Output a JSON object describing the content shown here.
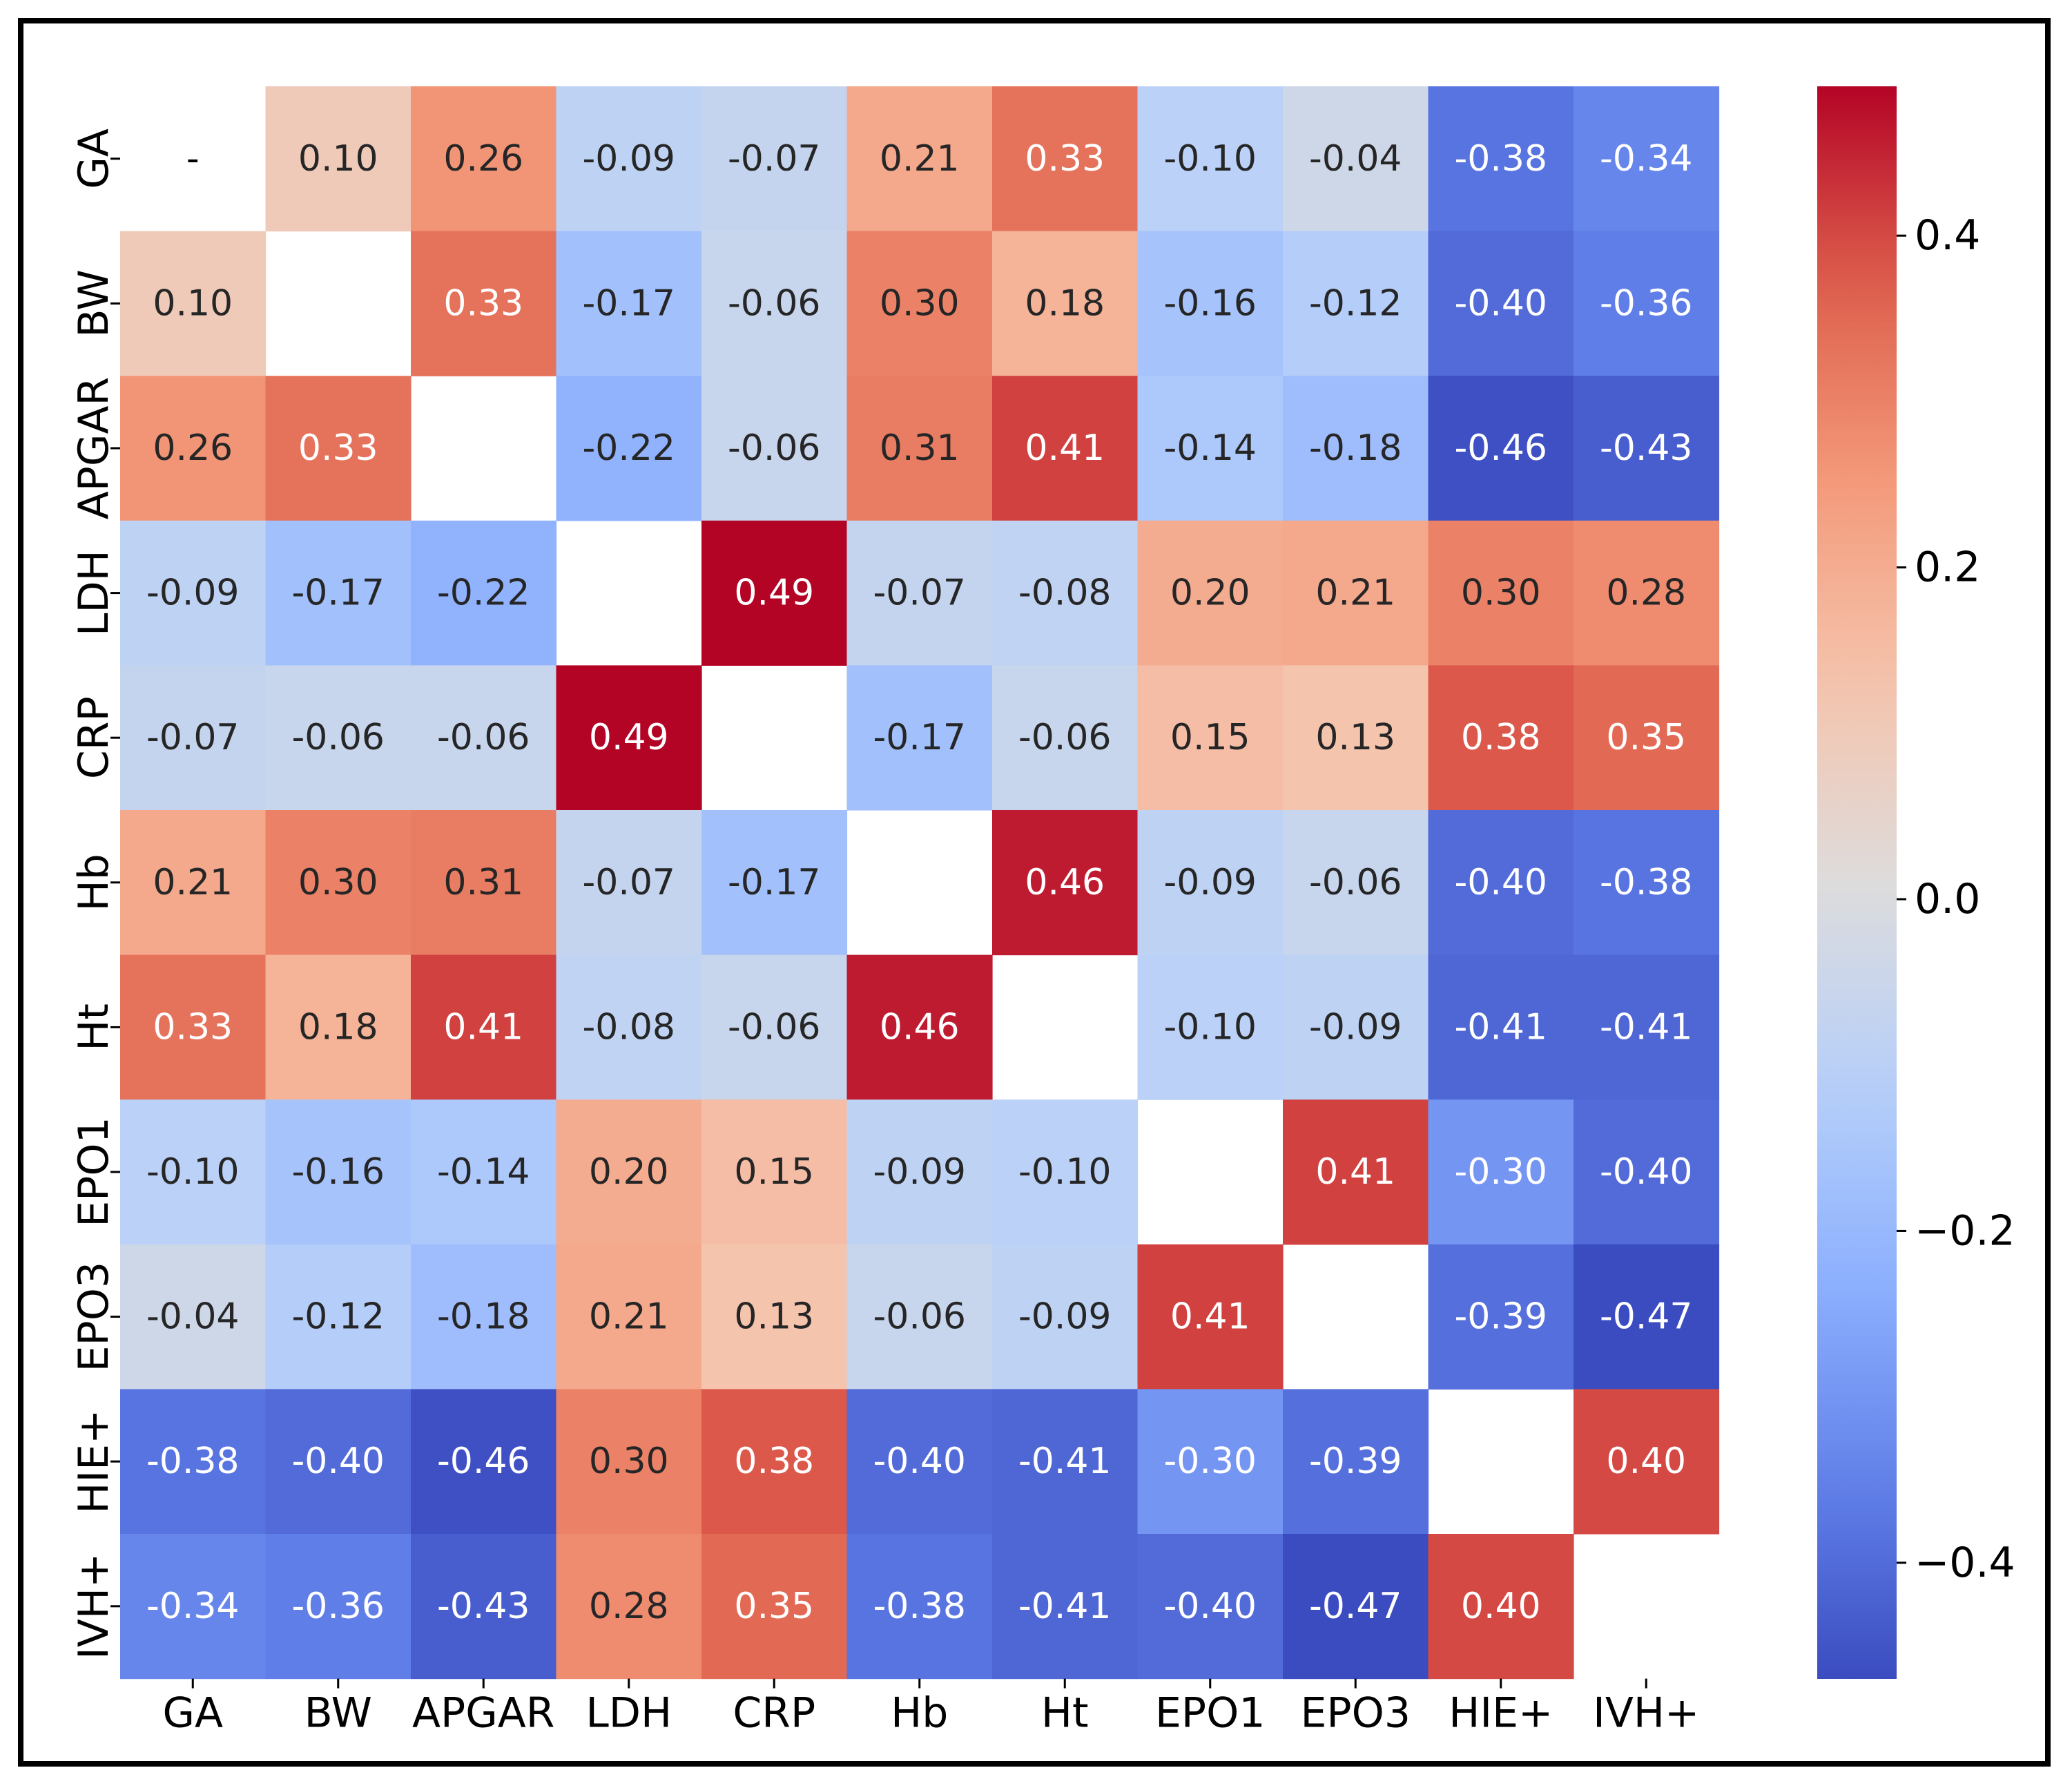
{
  "chart_data": {
    "type": "heatmap",
    "title": "",
    "xlabel": "",
    "ylabel": "",
    "labels": [
      "GA",
      "BW",
      "APGAR",
      "LDH",
      "CRP",
      "Hb",
      "Ht",
      "EPO1",
      "EPO3",
      "HIE+",
      "IVH+"
    ],
    "matrix": [
      [
        null,
        0.1,
        0.26,
        -0.09,
        -0.07,
        0.21,
        0.33,
        -0.1,
        -0.04,
        -0.38,
        -0.34
      ],
      [
        0.1,
        null,
        0.33,
        -0.17,
        -0.06,
        0.3,
        0.18,
        -0.16,
        -0.12,
        -0.4,
        -0.36
      ],
      [
        0.26,
        0.33,
        null,
        -0.22,
        -0.06,
        0.31,
        0.41,
        -0.14,
        -0.18,
        -0.46,
        -0.43
      ],
      [
        -0.09,
        -0.17,
        -0.22,
        null,
        0.49,
        -0.07,
        -0.08,
        0.2,
        0.21,
        0.3,
        0.28
      ],
      [
        -0.07,
        -0.06,
        -0.06,
        0.49,
        null,
        -0.17,
        -0.06,
        0.15,
        0.13,
        0.38,
        0.35
      ],
      [
        0.21,
        0.3,
        0.31,
        -0.07,
        -0.17,
        null,
        0.46,
        -0.09,
        -0.06,
        -0.4,
        -0.38
      ],
      [
        0.33,
        0.18,
        0.41,
        -0.08,
        -0.06,
        0.46,
        null,
        -0.1,
        -0.09,
        -0.41,
        -0.41
      ],
      [
        -0.1,
        -0.16,
        -0.14,
        0.2,
        0.15,
        -0.09,
        -0.1,
        null,
        0.41,
        -0.3,
        -0.4
      ],
      [
        -0.04,
        -0.12,
        -0.18,
        0.21,
        0.13,
        -0.06,
        -0.09,
        0.41,
        null,
        -0.39,
        -0.47
      ],
      [
        -0.38,
        -0.4,
        -0.46,
        0.3,
        0.38,
        -0.4,
        -0.41,
        -0.3,
        -0.39,
        null,
        0.4
      ],
      [
        -0.34,
        -0.36,
        -0.43,
        0.28,
        0.35,
        -0.38,
        -0.41,
        -0.4,
        -0.47,
        0.4,
        null
      ]
    ],
    "first_cell_label": "-",
    "colormap": "coolwarm",
    "vmin": -0.47,
    "vmax": 0.49,
    "colorbar": {
      "ticks": [
        0.4,
        0.2,
        0.0,
        -0.2,
        -0.4
      ],
      "tick_labels": [
        "0.4",
        "0.2",
        "0.0",
        "−0.2",
        "−0.4"
      ]
    }
  }
}
